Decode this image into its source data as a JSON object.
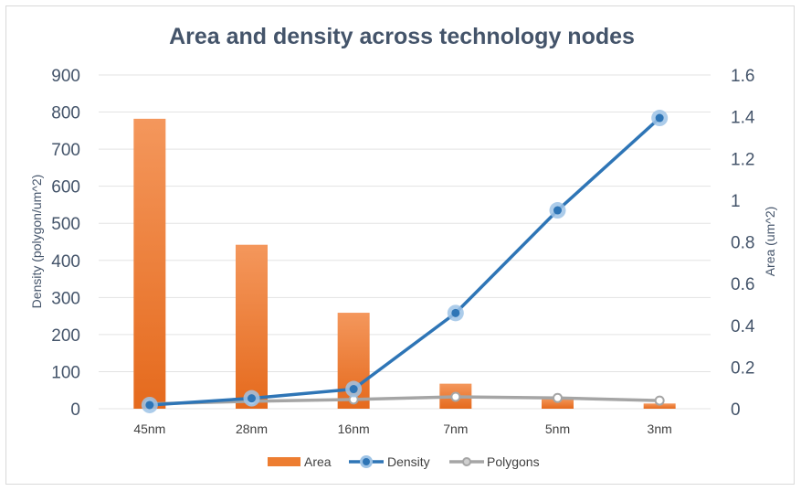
{
  "chart_data": {
    "type": "bar+line",
    "title": "Area and density across technology nodes",
    "categories": [
      "45nm",
      "28nm",
      "16nm",
      "7nm",
      "5nm",
      "3nm"
    ],
    "left_axis": {
      "label": "Density (polygon/um^2)",
      "min": 0,
      "max": 900,
      "step": 100,
      "ticks": [
        "0",
        "100",
        "200",
        "300",
        "400",
        "500",
        "600",
        "700",
        "800",
        "900"
      ]
    },
    "right_axis": {
      "label": "Area  (um^2)",
      "min": 0,
      "max": 1.6,
      "step": 0.2,
      "ticks": [
        "0",
        "0.2",
        "0.4",
        "0.6",
        "0.8",
        "1",
        "1.2",
        "1.4",
        "1.6"
      ]
    },
    "series": [
      {
        "name": "Area",
        "type": "bar",
        "axis": "right",
        "color": "#ed7d31",
        "values": [
          1.39,
          0.786,
          0.46,
          0.12,
          0.05,
          0.025
        ]
      },
      {
        "name": "Density",
        "type": "line",
        "axis": "left",
        "color": "#2e75b6",
        "marker_color": "#9dc3e6",
        "values": [
          10,
          28,
          53,
          258,
          535,
          784
        ]
      },
      {
        "name": "Polygons",
        "type": "line",
        "axis": "left",
        "color": "#a5a5a5",
        "marker_color": "#ffffff",
        "values": [
          13,
          20,
          25,
          32,
          29,
          22
        ]
      }
    ],
    "legend_position": "bottom"
  },
  "colors": {
    "text": "#44546a",
    "grid": "#e3e3e3"
  }
}
